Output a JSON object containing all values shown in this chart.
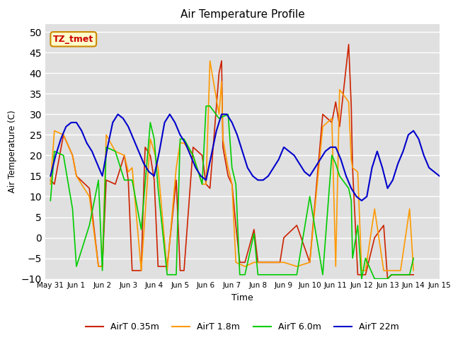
{
  "title": "Air Temperature Profile",
  "xlabel": "Time",
  "ylabel": "Air Temperature (C)",
  "ylim": [
    -10,
    52
  ],
  "yticks": [
    -10,
    -5,
    0,
    5,
    10,
    15,
    20,
    25,
    30,
    35,
    40,
    45,
    50
  ],
  "annotation_text": "TZ_tmet",
  "annotation_color": "#cc0000",
  "annotation_bg": "#ffffcc",
  "bg_color": "#e0e0e0",
  "colors": {
    "red": "#cc2200",
    "orange": "#ff9900",
    "green": "#00cc00",
    "blue": "#0000cc"
  },
  "x_tick_labels": [
    "May 31",
    "Jun 1",
    "Jun 2",
    "Jun 3",
    "Jun 4",
    "Jun 5",
    "Jun 6",
    "Jun 7",
    "Jun 8",
    "Jun 9",
    "Jun 10",
    "Jun 11",
    "Jun 12",
    "Jun 13",
    "Jun 14",
    "Jun 15"
  ],
  "legend_labels": [
    "AirT 0.35m",
    "AirT 1.8m",
    "AirT 6.0m",
    "AirT 22m"
  ],
  "red_x": [
    0,
    0.15,
    0.5,
    0.85,
    1.0,
    1.5,
    1.85,
    2.0,
    2.15,
    2.5,
    2.85,
    3.0,
    3.15,
    3.5,
    3.6,
    3.65,
    3.85,
    4.0,
    4.15,
    4.5,
    4.85,
    5.0,
    5.15,
    5.5,
    5.85,
    6.0,
    6.15,
    6.5,
    6.6,
    6.65,
    6.85,
    7.0,
    7.15,
    7.3,
    7.5,
    7.85,
    8.0,
    8.15,
    8.5,
    8.85,
    9.0,
    9.5,
    10.0,
    10.5,
    10.85,
    11.0,
    11.15,
    11.5,
    11.6,
    11.65,
    11.85,
    12.0,
    12.15,
    12.5,
    12.85,
    13.0,
    13.15,
    13.5,
    13.85,
    14.0
  ],
  "red_y": [
    14,
    13,
    25,
    20,
    15,
    12,
    -7,
    -7,
    14,
    13,
    20,
    14,
    -8,
    -8,
    13,
    22,
    20,
    14,
    -7,
    -7,
    14,
    -8,
    -8,
    22,
    20,
    13,
    12,
    40,
    43,
    22,
    15,
    13,
    3,
    -6,
    -6,
    2,
    -6,
    -6,
    -6,
    -6,
    0,
    3,
    -6,
    30,
    28,
    33,
    27,
    47,
    32,
    17,
    -9,
    -9,
    -9,
    0,
    3,
    -10,
    -9,
    -9,
    -9,
    -9
  ],
  "orange_x": [
    0,
    0.15,
    0.5,
    0.85,
    1.0,
    1.5,
    1.85,
    2.0,
    2.15,
    2.5,
    2.85,
    3.0,
    3.15,
    3.5,
    3.85,
    4.0,
    4.15,
    4.5,
    4.85,
    5.0,
    5.15,
    5.5,
    5.85,
    6.0,
    6.15,
    6.5,
    6.6,
    6.65,
    6.85,
    7.0,
    7.15,
    7.5,
    7.85,
    8.0,
    8.15,
    8.5,
    8.85,
    9.0,
    9.5,
    10.0,
    10.5,
    10.85,
    11.0,
    11.15,
    11.5,
    11.6,
    11.65,
    11.85,
    12.0,
    12.15,
    12.5,
    12.85,
    13.0,
    13.15,
    13.5,
    13.85,
    14.0
  ],
  "orange_y": [
    13,
    26,
    25,
    20,
    15,
    10,
    -7,
    -7,
    25,
    21,
    20,
    16,
    17,
    -8,
    24,
    21,
    17,
    -8,
    17,
    23,
    23,
    20,
    13,
    13,
    43,
    30,
    38,
    24,
    17,
    13,
    -6,
    -7,
    -6,
    -6,
    -6,
    -6,
    -6,
    -6,
    -7,
    -6,
    27,
    29,
    -7,
    36,
    33,
    19,
    17,
    16,
    -8,
    -8,
    7,
    -8,
    -8,
    -8,
    -8,
    7,
    -8
  ],
  "green_x": [
    0,
    0.15,
    0.5,
    0.85,
    1.0,
    1.5,
    1.85,
    2.0,
    2.15,
    2.5,
    2.85,
    3.0,
    3.15,
    3.5,
    3.85,
    4.0,
    4.15,
    4.5,
    4.85,
    5.0,
    5.15,
    5.5,
    5.85,
    6.0,
    6.15,
    6.5,
    6.85,
    7.0,
    7.15,
    7.3,
    7.5,
    7.85,
    8.0,
    8.15,
    8.5,
    8.85,
    9.0,
    9.5,
    10.0,
    10.5,
    10.85,
    11.0,
    11.15,
    11.5,
    11.6,
    11.65,
    11.85,
    12.0,
    12.15,
    12.5,
    12.85,
    13.0,
    13.15,
    13.5,
    13.85,
    14.0
  ],
  "green_y": [
    9,
    21,
    20,
    7,
    -7,
    3,
    14,
    -8,
    22,
    21,
    14,
    14,
    14,
    2,
    28,
    24,
    12,
    -9,
    -9,
    24,
    24,
    20,
    13,
    32,
    32,
    29,
    30,
    17,
    13,
    -9,
    -9,
    1,
    -9,
    -9,
    -9,
    -9,
    -9,
    -9,
    10,
    -9,
    20,
    18,
    15,
    12,
    9,
    -5,
    3,
    -10,
    -5,
    -10,
    -10,
    -10,
    -9,
    -9,
    -9,
    -5
  ],
  "blue_x": [
    0,
    0.2,
    0.4,
    0.6,
    0.8,
    1.0,
    1.2,
    1.4,
    1.6,
    1.8,
    2.0,
    2.2,
    2.4,
    2.6,
    2.8,
    3.0,
    3.2,
    3.4,
    3.6,
    3.8,
    4.0,
    4.2,
    4.4,
    4.6,
    4.8,
    5.0,
    5.2,
    5.4,
    5.6,
    5.8,
    6.0,
    6.2,
    6.4,
    6.6,
    6.8,
    7.0,
    7.2,
    7.4,
    7.6,
    7.8,
    8.0,
    8.2,
    8.4,
    8.6,
    8.8,
    9.0,
    9.2,
    9.4,
    9.6,
    9.8,
    10.0,
    10.2,
    10.4,
    10.6,
    10.8,
    11.0,
    11.2,
    11.4,
    11.6,
    11.8,
    12.0,
    12.2,
    12.4,
    12.6,
    12.8,
    13.0,
    13.2,
    13.4,
    13.6,
    13.8,
    14.0,
    14.2,
    14.4,
    14.6,
    14.8,
    15.0
  ],
  "blue_y": [
    15,
    20,
    24,
    27,
    28,
    28,
    26,
    23,
    21,
    18,
    15,
    22,
    28,
    30,
    29,
    27,
    24,
    21,
    18,
    16,
    15,
    21,
    28,
    30,
    28,
    25,
    23,
    20,
    17,
    15,
    14,
    20,
    26,
    30,
    30,
    28,
    25,
    21,
    17,
    15,
    14,
    14,
    15,
    17,
    19,
    22,
    21,
    20,
    18,
    16,
    15,
    17,
    19,
    21,
    22,
    22,
    19,
    15,
    12,
    10,
    9,
    10,
    17,
    21,
    17,
    12,
    14,
    18,
    21,
    25,
    26,
    24,
    20,
    17,
    16,
    15
  ]
}
